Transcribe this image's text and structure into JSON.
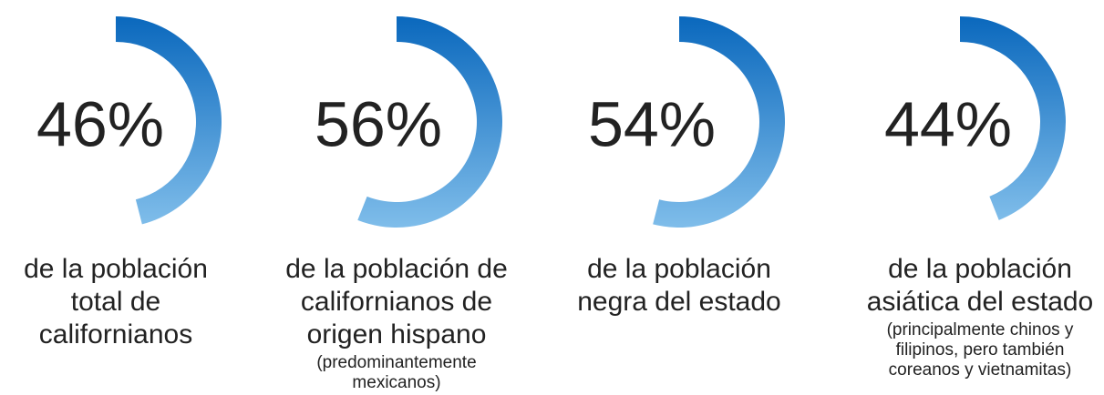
{
  "chart_data": {
    "type": "radial",
    "values": [
      46,
      56,
      54,
      44
    ],
    "value_labels": [
      "46%",
      "56%",
      "54%",
      "44%"
    ],
    "categories": [
      "de la población total de californianos",
      "de la población de californianos de origen hispano",
      "de la población negra del estado",
      "de la población asiática del estado"
    ],
    "notes": [
      null,
      "(predominantemente mexicanos)",
      null,
      "(principalmente chinos y filipinos, pero también coreanos y vietnamitas)"
    ],
    "color": [
      "#0a68bd",
      "#7fbdea"
    ]
  }
}
